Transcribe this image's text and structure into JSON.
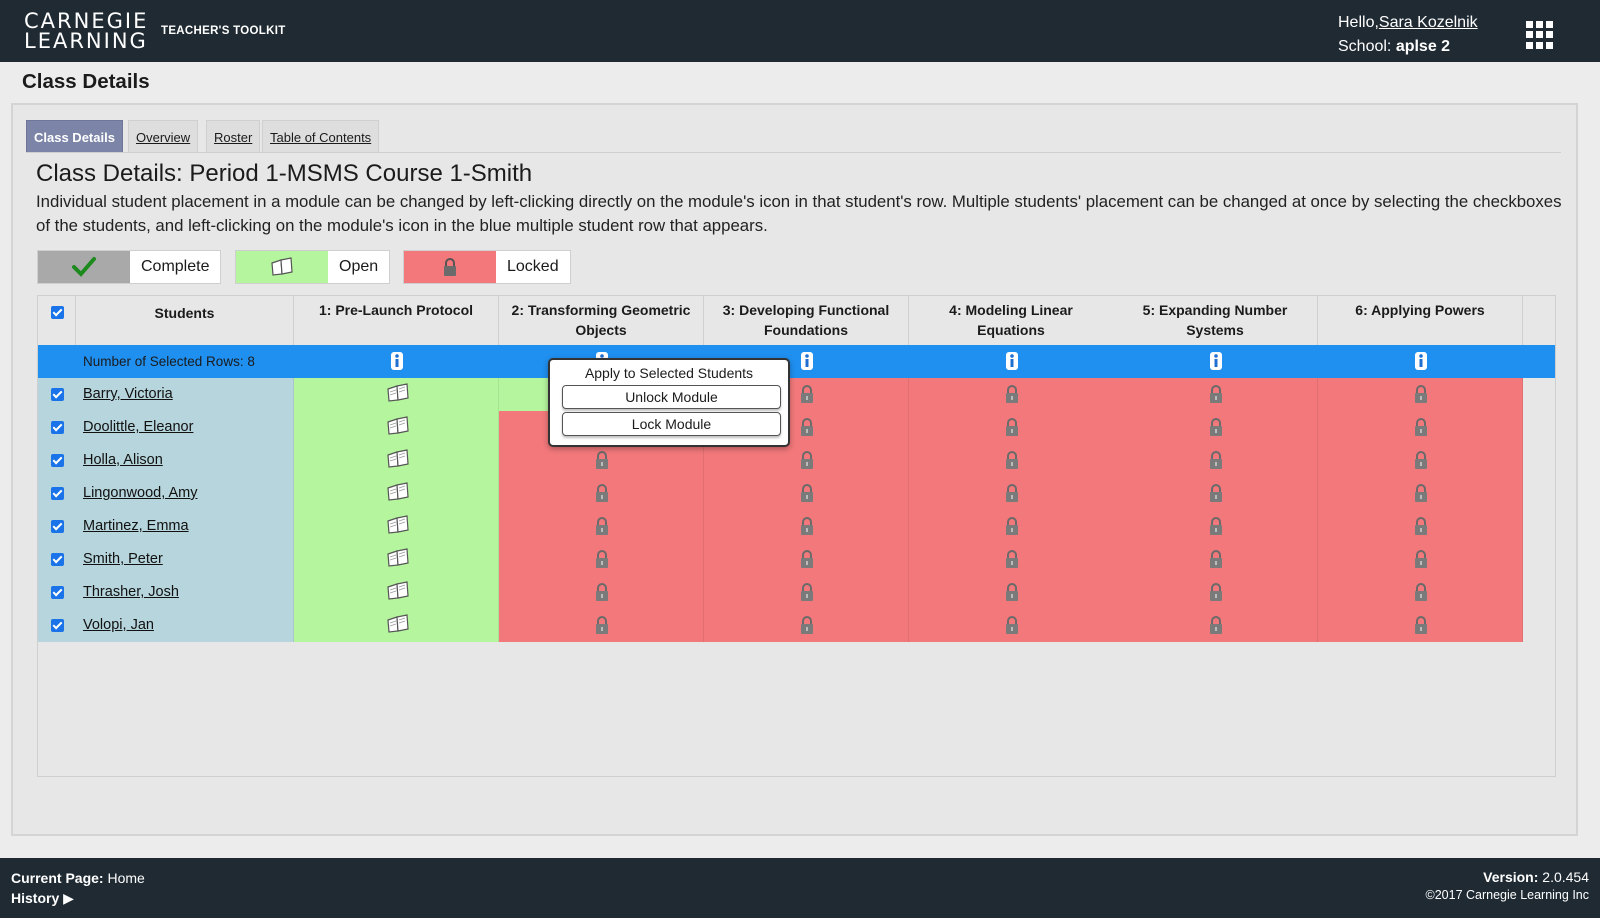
{
  "header": {
    "logo_line1": "CARNEGIE",
    "logo_line2": "LEARNING",
    "toolkit_label": "TEACHER'S TOOLKIT",
    "hello_prefix": "Hello,",
    "user_name": "Sara Kozelnik",
    "school_label": "School: ",
    "school_name": "aplse 2"
  },
  "page_heading": "Class Details",
  "tabs": [
    {
      "label": "Class Details",
      "active": true
    },
    {
      "label": "Overview",
      "active": false
    },
    {
      "label": "Roster",
      "active": false
    },
    {
      "label": "Table of Contents",
      "active": false
    }
  ],
  "class_title": "Class Details: Period 1-MSMS Course 1-Smith",
  "description": "Individual student placement in a module can be changed by left-clicking directly on the module's icon in that student's row. Multiple students' placement can be changed at once by selecting the checkboxes of the students, and left-clicking on the module's icon in the blue multiple student row that appears.",
  "legend": [
    {
      "label": "Complete",
      "icon": "checkmark-icon",
      "color": "#a9a9a9"
    },
    {
      "label": "Open",
      "icon": "open-book-icon",
      "color": "#b5f59d"
    },
    {
      "label": "Locked",
      "icon": "lock-icon",
      "color": "#f2787b"
    }
  ],
  "table": {
    "students_header": "Students",
    "selected_rows_text": "Number of Selected Rows: 8",
    "modules": [
      {
        "line1": "1: Pre-Launch Protocol",
        "line2": ""
      },
      {
        "line1": "2: Transforming Geometric",
        "line2": "Objects"
      },
      {
        "line1": "3: Developing Functional",
        "line2": "Foundations"
      },
      {
        "line1": "4: Modeling Linear",
        "line2": "Equations"
      },
      {
        "line1": "5: Expanding Number",
        "line2": "Systems"
      },
      {
        "line1": "6: Applying Powers",
        "line2": ""
      }
    ],
    "students": [
      {
        "name": "Barry, Victoria",
        "status": [
          "open",
          "open",
          "locked",
          "locked",
          "locked",
          "locked"
        ]
      },
      {
        "name": "Doolittle, Eleanor",
        "status": [
          "open",
          "locked",
          "locked",
          "locked",
          "locked",
          "locked"
        ]
      },
      {
        "name": "Holla, Alison",
        "status": [
          "open",
          "locked",
          "locked",
          "locked",
          "locked",
          "locked"
        ]
      },
      {
        "name": "Lingonwood, Amy",
        "status": [
          "open",
          "locked",
          "locked",
          "locked",
          "locked",
          "locked"
        ]
      },
      {
        "name": "Martinez, Emma",
        "status": [
          "open",
          "locked",
          "locked",
          "locked",
          "locked",
          "locked"
        ]
      },
      {
        "name": "Smith, Peter",
        "status": [
          "open",
          "locked",
          "locked",
          "locked",
          "locked",
          "locked"
        ]
      },
      {
        "name": "Thrasher, Josh",
        "status": [
          "open",
          "locked",
          "locked",
          "locked",
          "locked",
          "locked"
        ]
      },
      {
        "name": "Volopi, Jan",
        "status": [
          "open",
          "locked",
          "locked",
          "locked",
          "locked",
          "locked"
        ]
      }
    ]
  },
  "popup": {
    "title": "Apply to Selected Students",
    "unlock_label": "Unlock Module",
    "lock_label": "Lock Module"
  },
  "footer": {
    "current_page_label": "Current Page:",
    "current_page_value": "Home",
    "history_label": "History",
    "version_label": "Version:",
    "version_value": "2.0.454",
    "copyright": "©2017 Carnegie Learning Inc"
  },
  "colors": {
    "header_bg": "#1f2a33",
    "tab_active": "#7c85a8",
    "selected_row": "#1f8ff0",
    "open": "#b5f59d",
    "locked": "#f2787b",
    "student_col": "#b6d5dc"
  }
}
